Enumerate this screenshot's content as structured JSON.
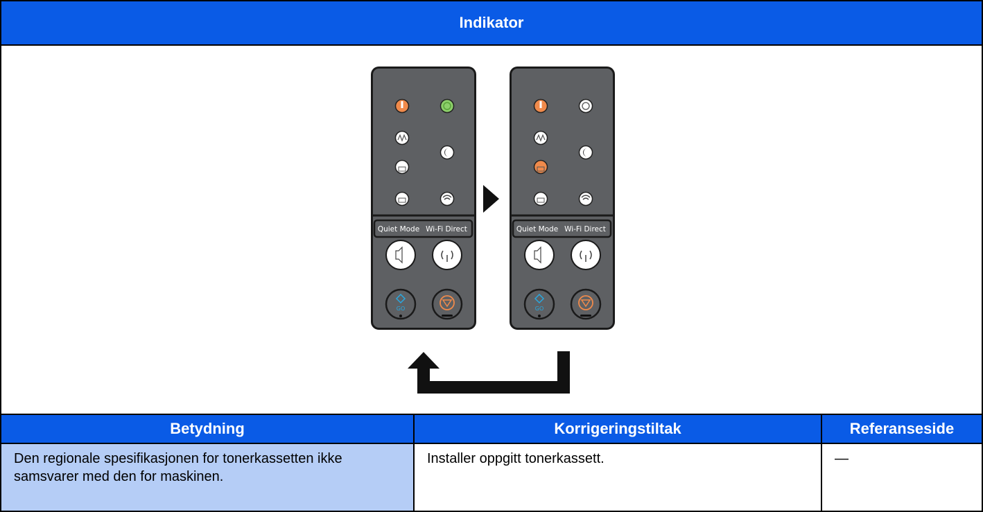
{
  "header": {
    "title": "Indikator"
  },
  "panels": [
    {
      "labels": [
        "Quiet Mode",
        "Wi-Fi Direct"
      ],
      "go": "GO"
    },
    {
      "labels": [
        "Quiet Mode",
        "Wi-Fi Direct"
      ],
      "go": "GO"
    }
  ],
  "table": {
    "columns": [
      "Betydning",
      "Korrigeringstiltak",
      "Referanseside"
    ],
    "rows": [
      [
        "Den regionale spesifikasjonen for tonerkassetten ikke samsvarer med den for maskinen.",
        "Installer oppgitt tonerkassett.",
        "—"
      ]
    ]
  }
}
